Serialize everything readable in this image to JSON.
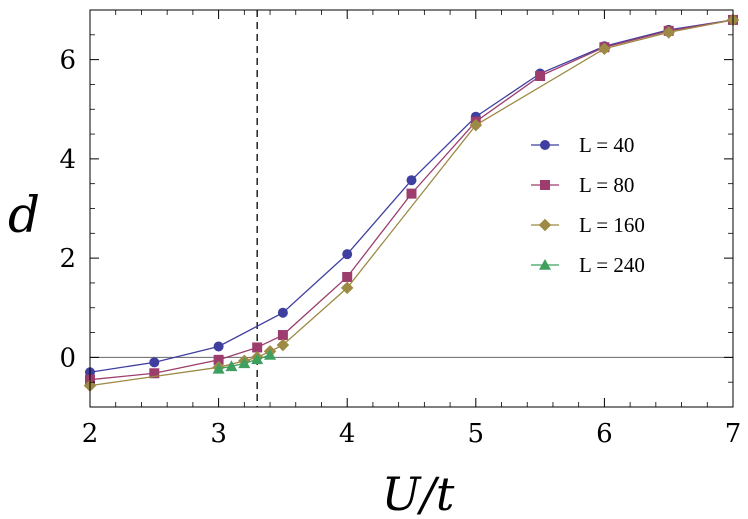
{
  "chart_data": {
    "type": "line",
    "xlabel": "U/t",
    "ylabel": "d",
    "xlim": [
      2,
      7
    ],
    "ylim": [
      -1,
      7
    ],
    "x_ticks": [
      2,
      3,
      4,
      5,
      6,
      7
    ],
    "y_ticks": [
      0,
      2,
      4,
      6
    ],
    "grid": false,
    "zero_line": true,
    "vertical_reference_line": {
      "x": 3.3,
      "style": "dashed"
    },
    "legend_position": "right",
    "series": [
      {
        "name": "L = 40",
        "marker": "circle",
        "color": "#3f3f9f",
        "x": [
          2,
          2.5,
          3,
          3.5,
          4,
          4.5,
          5,
          5.5,
          6,
          6.5,
          7
        ],
        "y": [
          -0.3,
          -0.1,
          0.22,
          0.9,
          2.08,
          3.57,
          4.85,
          5.72,
          6.27,
          6.6,
          6.8
        ]
      },
      {
        "name": "L = 80",
        "marker": "square",
        "color": "#9c3d6e",
        "x": [
          2,
          2.5,
          3,
          3.3,
          3.5,
          4,
          4.5,
          5,
          5.5,
          6,
          6.5,
          7
        ],
        "y": [
          -0.45,
          -0.32,
          -0.05,
          0.2,
          0.45,
          1.62,
          3.3,
          4.75,
          5.67,
          6.25,
          6.58,
          6.8
        ]
      },
      {
        "name": "L = 160",
        "marker": "diamond",
        "color": "#9c8a45",
        "x": [
          2,
          3,
          3.2,
          3.3,
          3.4,
          3.5,
          4,
          5,
          6,
          6.5,
          7
        ],
        "y": [
          -0.57,
          -0.2,
          -0.07,
          0.0,
          0.12,
          0.25,
          1.4,
          4.68,
          6.22,
          6.55,
          6.8
        ]
      },
      {
        "name": "L = 240",
        "marker": "triangle",
        "color": "#3f9f5f",
        "x": [
          3,
          3.1,
          3.2,
          3.3,
          3.4
        ],
        "y": [
          -0.23,
          -0.18,
          -0.12,
          -0.04,
          0.05
        ]
      }
    ]
  }
}
